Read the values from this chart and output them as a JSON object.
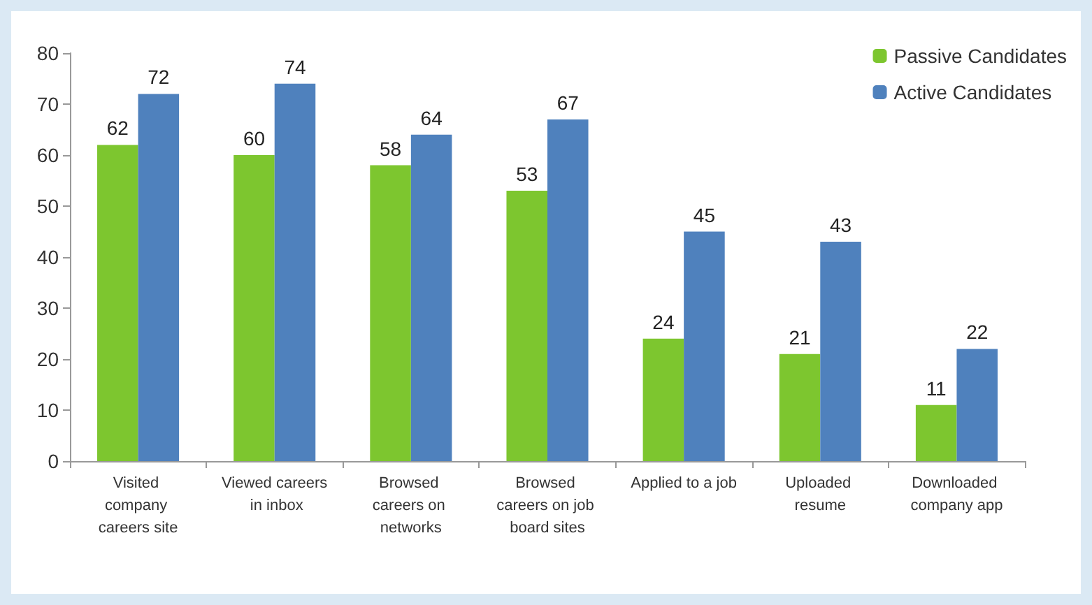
{
  "chart_data": {
    "type": "bar",
    "categories": [
      "Visited company careers site",
      "Viewed careers in inbox",
      "Browsed careers on networks",
      "Browsed careers on job board sites",
      "Applied to a job",
      "Uploaded resume",
      "Downloaded company app"
    ],
    "series": [
      {
        "name": "Passive Candidates",
        "color": "#7dc62f",
        "values": [
          62,
          60,
          58,
          53,
          24,
          21,
          11
        ]
      },
      {
        "name": "Active Candidates",
        "color": "#4f81bd",
        "values": [
          72,
          74,
          64,
          67,
          45,
          43,
          22
        ]
      }
    ],
    "ylim": [
      0,
      80
    ],
    "yticks": [
      0,
      10,
      20,
      30,
      40,
      50,
      60,
      70,
      80
    ],
    "grid": false,
    "legend": "top right",
    "data_labels": true
  }
}
